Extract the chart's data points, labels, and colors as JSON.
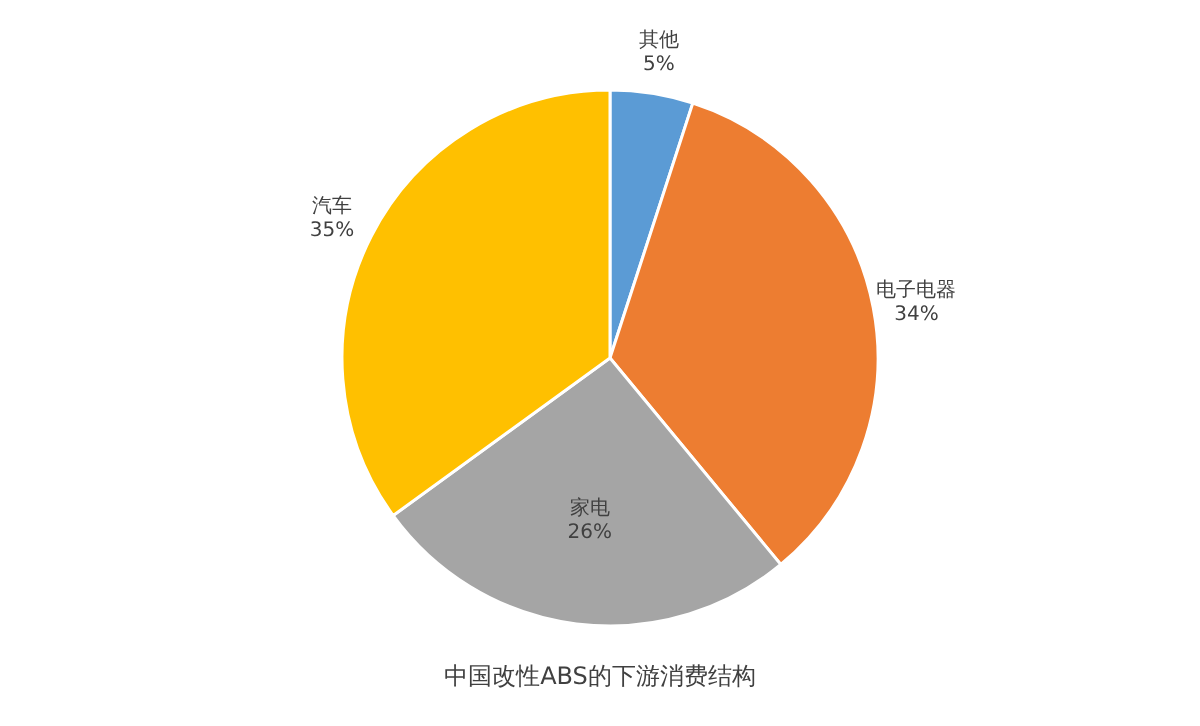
{
  "chart_data": {
    "type": "pie",
    "title": "中国改性ABS的下游消费结构",
    "categories": [
      "其他",
      "电子电器",
      "家电",
      "汽车"
    ],
    "values": [
      5,
      34,
      26,
      35
    ],
    "value_labels": [
      "5%",
      "34%",
      "26%",
      "35%"
    ],
    "colors": [
      "#5b9bd5",
      "#ed7d31",
      "#a5a5a5",
      "#ffc000"
    ],
    "legend": false
  }
}
